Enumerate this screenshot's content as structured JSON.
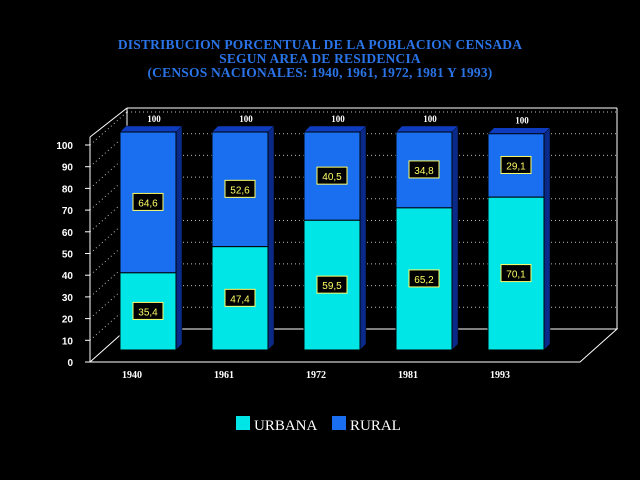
{
  "chart_data": {
    "type": "bar",
    "stacked": true,
    "title": [
      "DISTRIBUCION PORCENTUAL DE LA POBLACION CENSADA",
      "SEGUN AREA DE RESIDENCIA",
      "(CENSOS NACIONALES: 1940, 1961, 1972, 1981 Y 1993)"
    ],
    "categories": [
      "1940",
      "1961",
      "1972",
      "1981",
      "1993"
    ],
    "series": [
      {
        "name": "URBANA",
        "values": [
          35.4,
          47.4,
          59.5,
          65.2,
          70.1
        ],
        "labels": [
          "35,4",
          "47,4",
          "59,5",
          "65,2",
          "70,1"
        ]
      },
      {
        "name": "RURAL",
        "values": [
          64.6,
          52.6,
          40.5,
          34.8,
          29.1
        ],
        "labels": [
          "64,6",
          "52,6",
          "40,5",
          "34,8",
          "29,1"
        ]
      }
    ],
    "totals": [
      "100",
      "100",
      "100",
      "100",
      "100"
    ],
    "yticks": [
      "0",
      "10",
      "20",
      "30",
      "40",
      "50",
      "60",
      "70",
      "80",
      "90",
      "100"
    ],
    "ylim": [
      0,
      100
    ],
    "grid": true,
    "legend_position": "bottom-center",
    "colors": {
      "URBANA": "#00e5e5",
      "RURAL": "#1a6ff0",
      "title": "#2a74e8",
      "label_box": "#000000",
      "label_text": "#ffff66",
      "axis": "#ffffff"
    }
  }
}
